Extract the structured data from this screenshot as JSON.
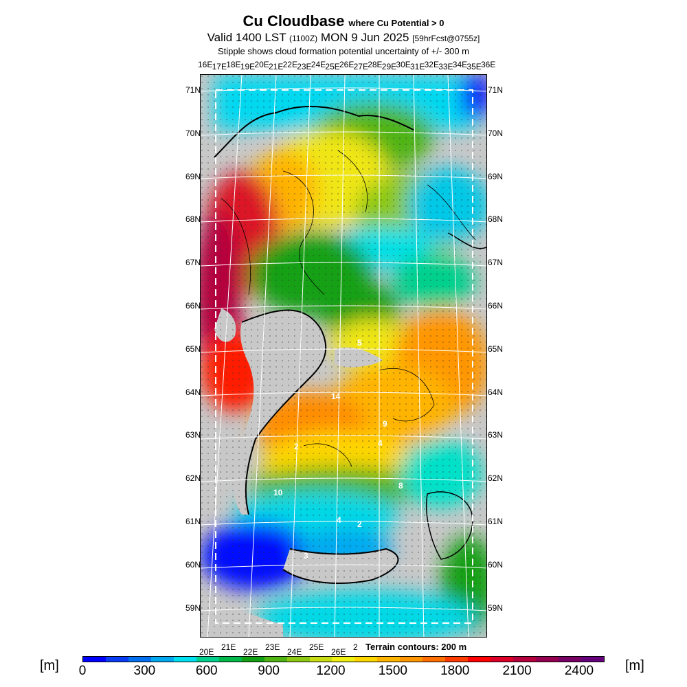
{
  "header": {
    "title": "Cu Cloudbase",
    "title_note": "where Cu Potential > 0",
    "valid_line_a": "Valid 1400 LST",
    "valid_line_z": "(1100Z)",
    "valid_line_b": "MON 9 Jun 2025",
    "forecast_tag": "[59hrFcst@0755z]",
    "stipple_note": "Stipple shows cloud formation potential uncertainty of +/- 300 m"
  },
  "axes": {
    "top_lon": [
      "16E",
      "17E",
      "18E",
      "19E",
      "20E",
      "21E",
      "22E",
      "23E",
      "24E",
      "25E",
      "26E",
      "27E",
      "28E",
      "29E",
      "30E",
      "31E",
      "32E",
      "33E",
      "34E",
      "35E",
      "36E"
    ],
    "bottom_lon": [
      "20E",
      "21E",
      "22E",
      "23E",
      "24E",
      "25E",
      "26E",
      "2"
    ],
    "lat": [
      "71N",
      "70N",
      "69N",
      "68N",
      "67N",
      "66N",
      "65N",
      "64N",
      "63N",
      "62N",
      "61N",
      "60N",
      "59N"
    ]
  },
  "map": {
    "terrain_label": "Terrain contours: 200 m",
    "field_labels": [
      "14",
      "2",
      "10",
      "3",
      "4",
      "5",
      "4",
      "2",
      "9",
      "8"
    ]
  },
  "colorbar": {
    "unit_left": "[m]",
    "unit_right": "[m]",
    "labels": [
      "0",
      "300",
      "600",
      "900",
      "1200",
      "1500",
      "1800",
      "2100",
      "2400"
    ],
    "colors": [
      "#0000ff",
      "#0a3cf5",
      "#0070f0",
      "#00a8f0",
      "#00e0f0",
      "#00d08c",
      "#00b84a",
      "#14a014",
      "#50b414",
      "#8cc814",
      "#c8dc14",
      "#f0f014",
      "#ffd700",
      "#ffb400",
      "#ff9600",
      "#ff6e00",
      "#ff3c00",
      "#ff0000",
      "#dc0028",
      "#b4003c",
      "#960050",
      "#780064",
      "#64007a"
    ]
  }
}
